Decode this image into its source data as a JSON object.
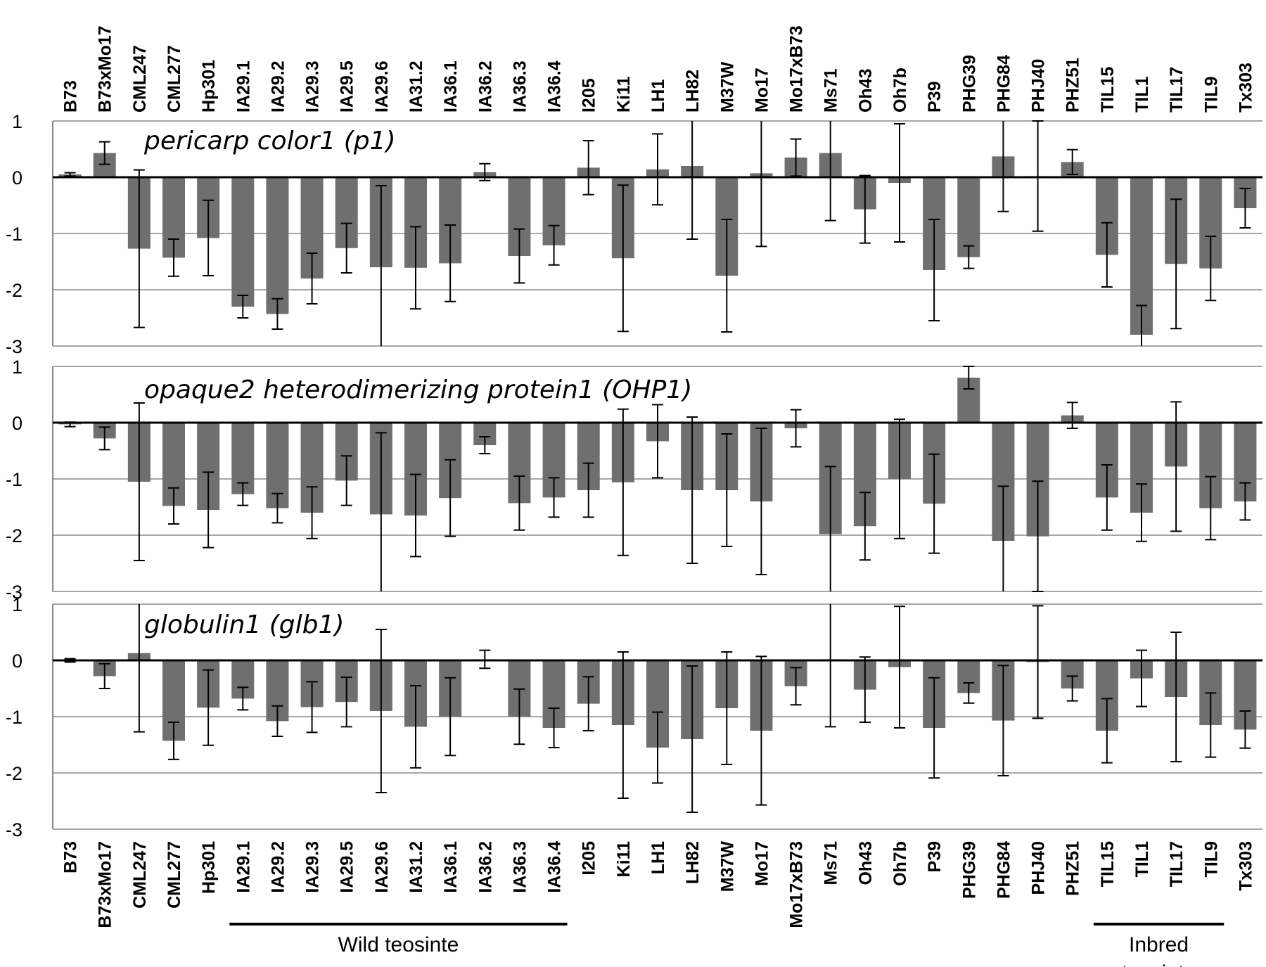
{
  "chart_data": {
    "type": "bar",
    "categories": [
      "B73",
      "B73xMo17",
      "CML247",
      "CML277",
      "Hp301",
      "IA29.1",
      "IA29.2",
      "IA29.3",
      "IA29.5",
      "IA29.6",
      "IA31.2",
      "IA36.1",
      "IA36.2",
      "IA36.3",
      "IA36.4",
      "I205",
      "Ki11",
      "LH1",
      "LH82",
      "M37W",
      "Mo17",
      "Mo17xB73",
      "Ms71",
      "Oh43",
      "Oh7b",
      "P39",
      "PHG39",
      "PHG84",
      "PHJ40",
      "PHZ51",
      "TIL15",
      "TIL1",
      "TIL17",
      "TIL9",
      "Tx303"
    ],
    "ylim": [
      -3,
      1
    ],
    "yticks": [
      "1",
      "0",
      "-1",
      "-2",
      "-3"
    ],
    "panels": [
      {
        "title": "pericarp color1 (p1)",
        "values": [
          0.05,
          0.43,
          -1.27,
          -1.43,
          -1.08,
          -2.3,
          -2.43,
          -1.8,
          -1.26,
          -1.6,
          -1.61,
          -1.53,
          0.09,
          -1.4,
          -1.21,
          0.17,
          -1.44,
          0.14,
          0.2,
          -1.75,
          0.07,
          0.35,
          0.43,
          -0.57,
          -0.1,
          -1.65,
          -1.42,
          0.37,
          0.02,
          0.27,
          -1.38,
          -2.8,
          -1.54,
          -1.62,
          -0.55
        ],
        "errors": [
          0.03,
          0.2,
          1.4,
          0.33,
          0.67,
          0.2,
          0.27,
          0.45,
          0.44,
          1.45,
          0.73,
          0.68,
          0.15,
          0.48,
          0.35,
          0.48,
          1.3,
          0.63,
          1.3,
          1.0,
          1.3,
          0.33,
          1.2,
          0.6,
          1.05,
          0.9,
          0.2,
          0.98,
          0.98,
          0.22,
          0.57,
          0.52,
          1.15,
          0.57,
          0.35
        ]
      },
      {
        "title": "opaque2 heterodimerizing protein1 (OHP1)",
        "values": [
          -0.03,
          -0.28,
          -1.05,
          -1.48,
          -1.55,
          -1.27,
          -1.52,
          -1.6,
          -1.03,
          -1.63,
          -1.65,
          -1.34,
          -0.4,
          -1.43,
          -1.33,
          -1.2,
          -1.06,
          -0.33,
          -1.2,
          -1.2,
          -1.4,
          -0.1,
          -1.98,
          -1.84,
          -1.0,
          -1.44,
          0.8,
          -2.1,
          -2.02,
          0.13,
          -1.33,
          -1.6,
          -0.78,
          -1.52,
          -1.4
        ],
        "errors": [
          0.04,
          0.2,
          1.4,
          0.32,
          0.67,
          0.2,
          0.26,
          0.46,
          0.44,
          1.45,
          0.73,
          0.68,
          0.15,
          0.48,
          0.35,
          0.48,
          1.3,
          0.65,
          1.3,
          1.0,
          1.3,
          0.33,
          1.2,
          0.6,
          1.06,
          0.88,
          0.2,
          0.97,
          0.98,
          0.23,
          0.58,
          0.51,
          1.15,
          0.56,
          0.33
        ]
      },
      {
        "title": "globulin1 (glb1)",
        "values": [
          0.0,
          -0.28,
          0.13,
          -1.43,
          -0.84,
          -0.68,
          -1.08,
          -0.83,
          -0.74,
          -0.9,
          -1.18,
          -1.0,
          0.02,
          -1.0,
          -1.2,
          -0.77,
          -1.15,
          -1.55,
          -1.4,
          -0.85,
          -1.25,
          -0.46,
          0.02,
          -0.52,
          -0.12,
          -1.2,
          -0.58,
          -1.07,
          -0.03,
          -0.5,
          -1.25,
          -0.32,
          -0.65,
          -1.15,
          -1.23
        ],
        "errors": [
          0.03,
          0.22,
          1.4,
          0.33,
          0.67,
          0.2,
          0.27,
          0.45,
          0.44,
          1.45,
          0.73,
          0.69,
          0.16,
          0.49,
          0.35,
          0.48,
          1.3,
          0.63,
          1.3,
          1.0,
          1.32,
          0.33,
          1.2,
          0.58,
          1.08,
          0.89,
          0.18,
          0.98,
          1.0,
          0.22,
          0.57,
          0.5,
          1.15,
          0.57,
          0.33
        ]
      }
    ],
    "groups": [
      {
        "label": "Wild teosinte",
        "from": "IA29.1",
        "to": "IA36.4"
      },
      {
        "label_lines": [
          "Inbred",
          "teosinte"
        ],
        "from": "TIL15",
        "to": "TIL9"
      }
    ],
    "colors": {
      "bar": "#6f6f6f",
      "error": "#000000"
    }
  }
}
